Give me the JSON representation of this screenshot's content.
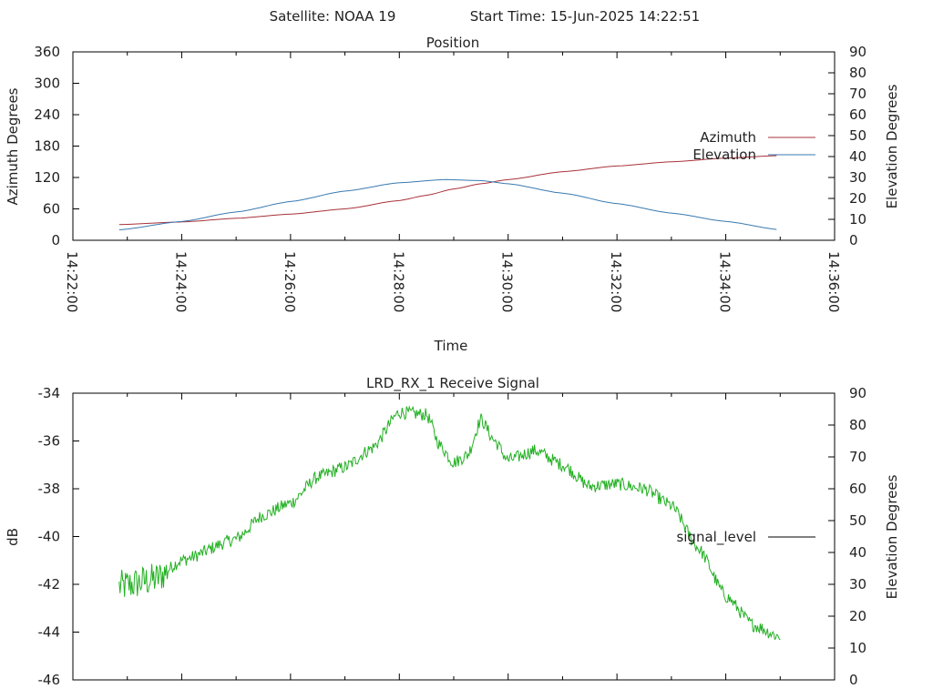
{
  "header": {
    "satellite": "Satellite: NOAA 19",
    "start_time": "Start Time: 15-Jun-2025 14:22:51"
  },
  "chart_data": [
    {
      "type": "line",
      "title": "Position",
      "xlabel": "Time",
      "ylabel": "Azimuth Degrees",
      "y2label": "Elevation Degrees",
      "xlim": [
        "14:22:00",
        "14:36:00"
      ],
      "ylim": [
        0,
        360
      ],
      "y2lim": [
        0,
        90
      ],
      "x_ticks": [
        "14:22:00",
        "14:24:00",
        "14:26:00",
        "14:28:00",
        "14:30:00",
        "14:32:00",
        "14:34:00",
        "14:36:00"
      ],
      "y_ticks": [
        "0",
        "60",
        "120",
        "180",
        "240",
        "300",
        "360"
      ],
      "y2_ticks": [
        "0",
        "10",
        "20",
        "30",
        "40",
        "50",
        "60",
        "70",
        "80",
        "90"
      ],
      "legend": "right",
      "grid": false,
      "series": [
        {
          "name": "Azimuth",
          "axis": "y",
          "color": "#a8323a",
          "x": [
            "14:22:51",
            "14:24:00",
            "14:25:00",
            "14:26:00",
            "14:27:00",
            "14:28:00",
            "14:28:30",
            "14:29:00",
            "14:29:30",
            "14:30:00",
            "14:31:00",
            "14:32:00",
            "14:33:00",
            "14:34:00",
            "14:35:00"
          ],
          "values": [
            30,
            35,
            42,
            50,
            60,
            76,
            86,
            98,
            108,
            116,
            131,
            142,
            150,
            157,
            162
          ]
        },
        {
          "name": "Elevation",
          "axis": "y2",
          "color": "#3a7ab0",
          "x": [
            "14:22:51",
            "14:24:00",
            "14:25:00",
            "14:26:00",
            "14:27:00",
            "14:28:00",
            "14:28:50",
            "14:29:30",
            "14:30:00",
            "14:31:00",
            "14:32:00",
            "14:33:00",
            "14:34:00",
            "14:35:00"
          ],
          "values": [
            5,
            9,
            13.5,
            18.5,
            23.5,
            27.5,
            29,
            28.5,
            27,
            22.5,
            17.5,
            13,
            9,
            5
          ]
        }
      ]
    },
    {
      "type": "line",
      "title": "LRD_RX_1 Receive Signal",
      "xlabel": "",
      "ylabel": "dB",
      "y2label": "Elevation Degrees",
      "xlim": [
        "14:22:00",
        "14:36:00"
      ],
      "ylim": [
        -46,
        -34
      ],
      "y2lim": [
        0,
        90
      ],
      "y_ticks": [
        "-34",
        "-36",
        "-38",
        "-40",
        "-42",
        "-44",
        "-46"
      ],
      "y2_ticks": [
        "0",
        "10",
        "20",
        "30",
        "40",
        "50",
        "60",
        "70",
        "80",
        "90"
      ],
      "legend": "right",
      "grid": false,
      "series": [
        {
          "name": "signal_level",
          "color": "#22b022",
          "x": [
            "14:22:51",
            "14:23:30",
            "14:24:00",
            "14:25:00",
            "14:25:30",
            "14:26:00",
            "14:26:30",
            "14:27:00",
            "14:27:30",
            "14:28:00",
            "14:28:30",
            "14:28:45",
            "14:29:00",
            "14:29:15",
            "14:29:30",
            "14:29:45",
            "14:30:00",
            "14:30:30",
            "14:31:00",
            "14:31:30",
            "14:32:00",
            "14:32:30",
            "14:33:00",
            "14:33:30",
            "14:34:00",
            "14:34:30",
            "14:35:00"
          ],
          "values": [
            -42.1,
            -41.8,
            -41.0,
            -40.1,
            -39.1,
            -38.6,
            -37.5,
            -37.1,
            -36.3,
            -34.8,
            -34.9,
            -36.2,
            -36.9,
            -36.6,
            -35.1,
            -36.0,
            -36.8,
            -36.4,
            -37.0,
            -37.9,
            -37.8,
            -38.0,
            -38.7,
            -40.5,
            -42.5,
            -43.7,
            -44.2
          ]
        }
      ]
    }
  ]
}
